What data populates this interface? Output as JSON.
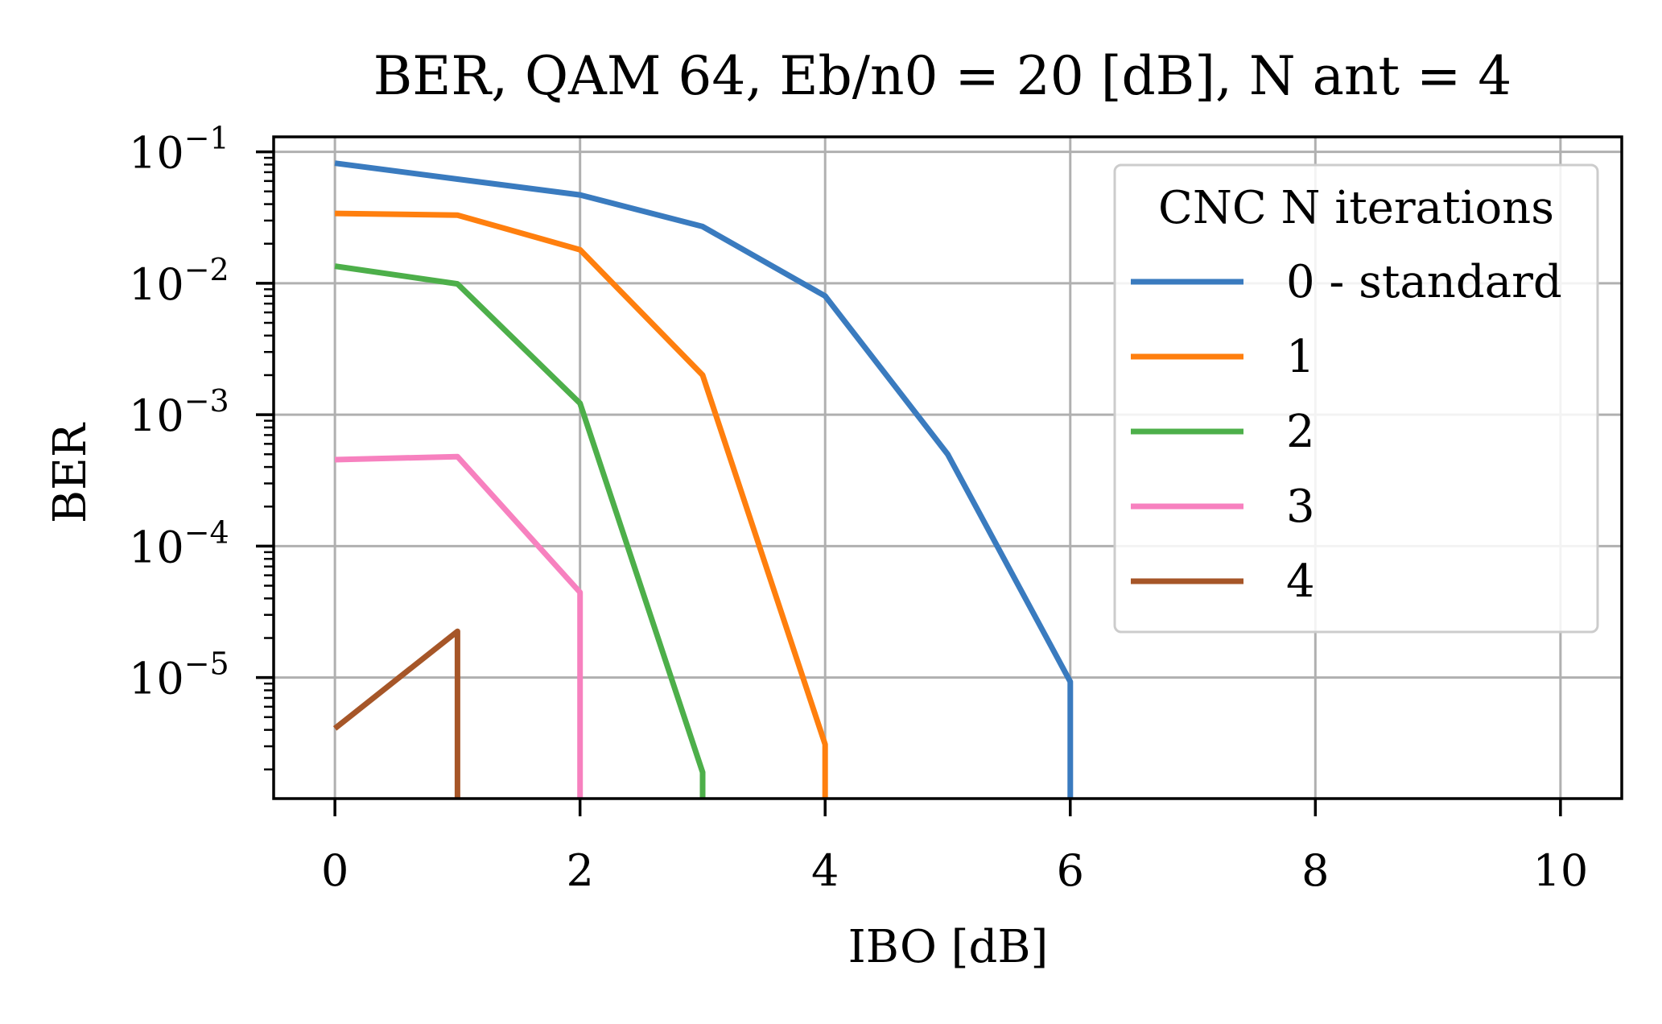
{
  "chart_data": {
    "type": "line",
    "title": "BER, QAM 64, Eb/n0 = 20 [dB], N ant = 4",
    "xlabel": "IBO [dB]",
    "ylabel": "BER",
    "xlim": [
      -0.5,
      10.5
    ],
    "ylim": [
      1.2e-06,
      0.13
    ],
    "yscale": "log",
    "grid": true,
    "xticks": [
      0,
      2,
      4,
      6,
      8,
      10
    ],
    "xtick_labels": [
      "0",
      "2",
      "4",
      "6",
      "8",
      "10"
    ],
    "yticks": [
      0.1,
      0.01,
      0.001,
      0.0001,
      1e-05
    ],
    "ytick_labels": [
      {
        "base": "10",
        "exp": "−1"
      },
      {
        "base": "10",
        "exp": "−2"
      },
      {
        "base": "10",
        "exp": "−3"
      },
      {
        "base": "10",
        "exp": "−4"
      },
      {
        "base": "10",
        "exp": "−5"
      }
    ],
    "legend": {
      "title": "CNC N iterations",
      "placement": "top-right"
    },
    "series": [
      {
        "name": "0 - standard",
        "color": "#3a7bbf",
        "x": [
          0,
          1,
          2,
          3,
          4,
          5,
          6,
          6
        ],
        "y": [
          0.082,
          0.062,
          0.047,
          0.027,
          0.008,
          0.0005,
          9.3e-06,
          1.2e-06
        ]
      },
      {
        "name": "1",
        "color": "#ff7f0e",
        "x": [
          0,
          1,
          2,
          3,
          4,
          4
        ],
        "y": [
          0.034,
          0.033,
          0.018,
          0.002,
          3.1e-06,
          1.2e-06
        ]
      },
      {
        "name": "2",
        "color": "#4daf4a",
        "x": [
          0,
          1,
          2,
          3,
          3
        ],
        "y": [
          0.0135,
          0.0099,
          0.00122,
          1.9e-06,
          1.2e-06
        ]
      },
      {
        "name": "3",
        "color": "#f781bf",
        "x": [
          0,
          1,
          2,
          2
        ],
        "y": [
          0.000455,
          0.00048,
          4.45e-05,
          1.2e-06
        ]
      },
      {
        "name": "4",
        "color": "#a65628",
        "x": [
          0,
          1,
          1
        ],
        "y": [
          4.1e-06,
          2.25e-05,
          1.2e-06
        ]
      }
    ]
  }
}
